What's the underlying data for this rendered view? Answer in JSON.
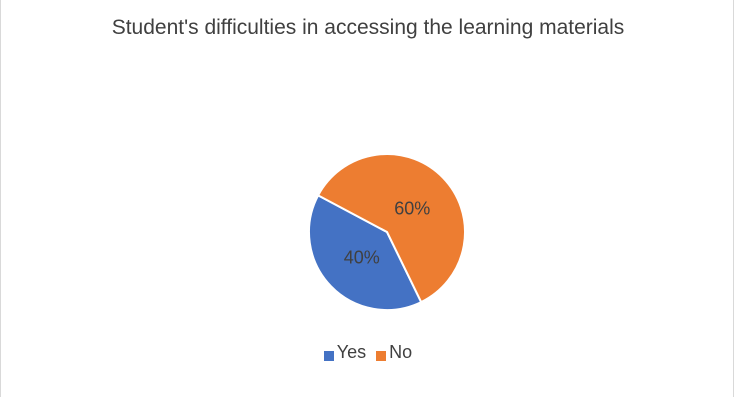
{
  "chart_data": {
    "type": "pie",
    "title": "Student's difficulties in accessing the learning materials",
    "slices": [
      {
        "label": "Yes",
        "value": 40,
        "data_label": "40%",
        "color": "#4472C4"
      },
      {
        "label": "No",
        "value": 60,
        "data_label": "60%",
        "color": "#ED7D31"
      }
    ],
    "legend_position": "bottom"
  }
}
